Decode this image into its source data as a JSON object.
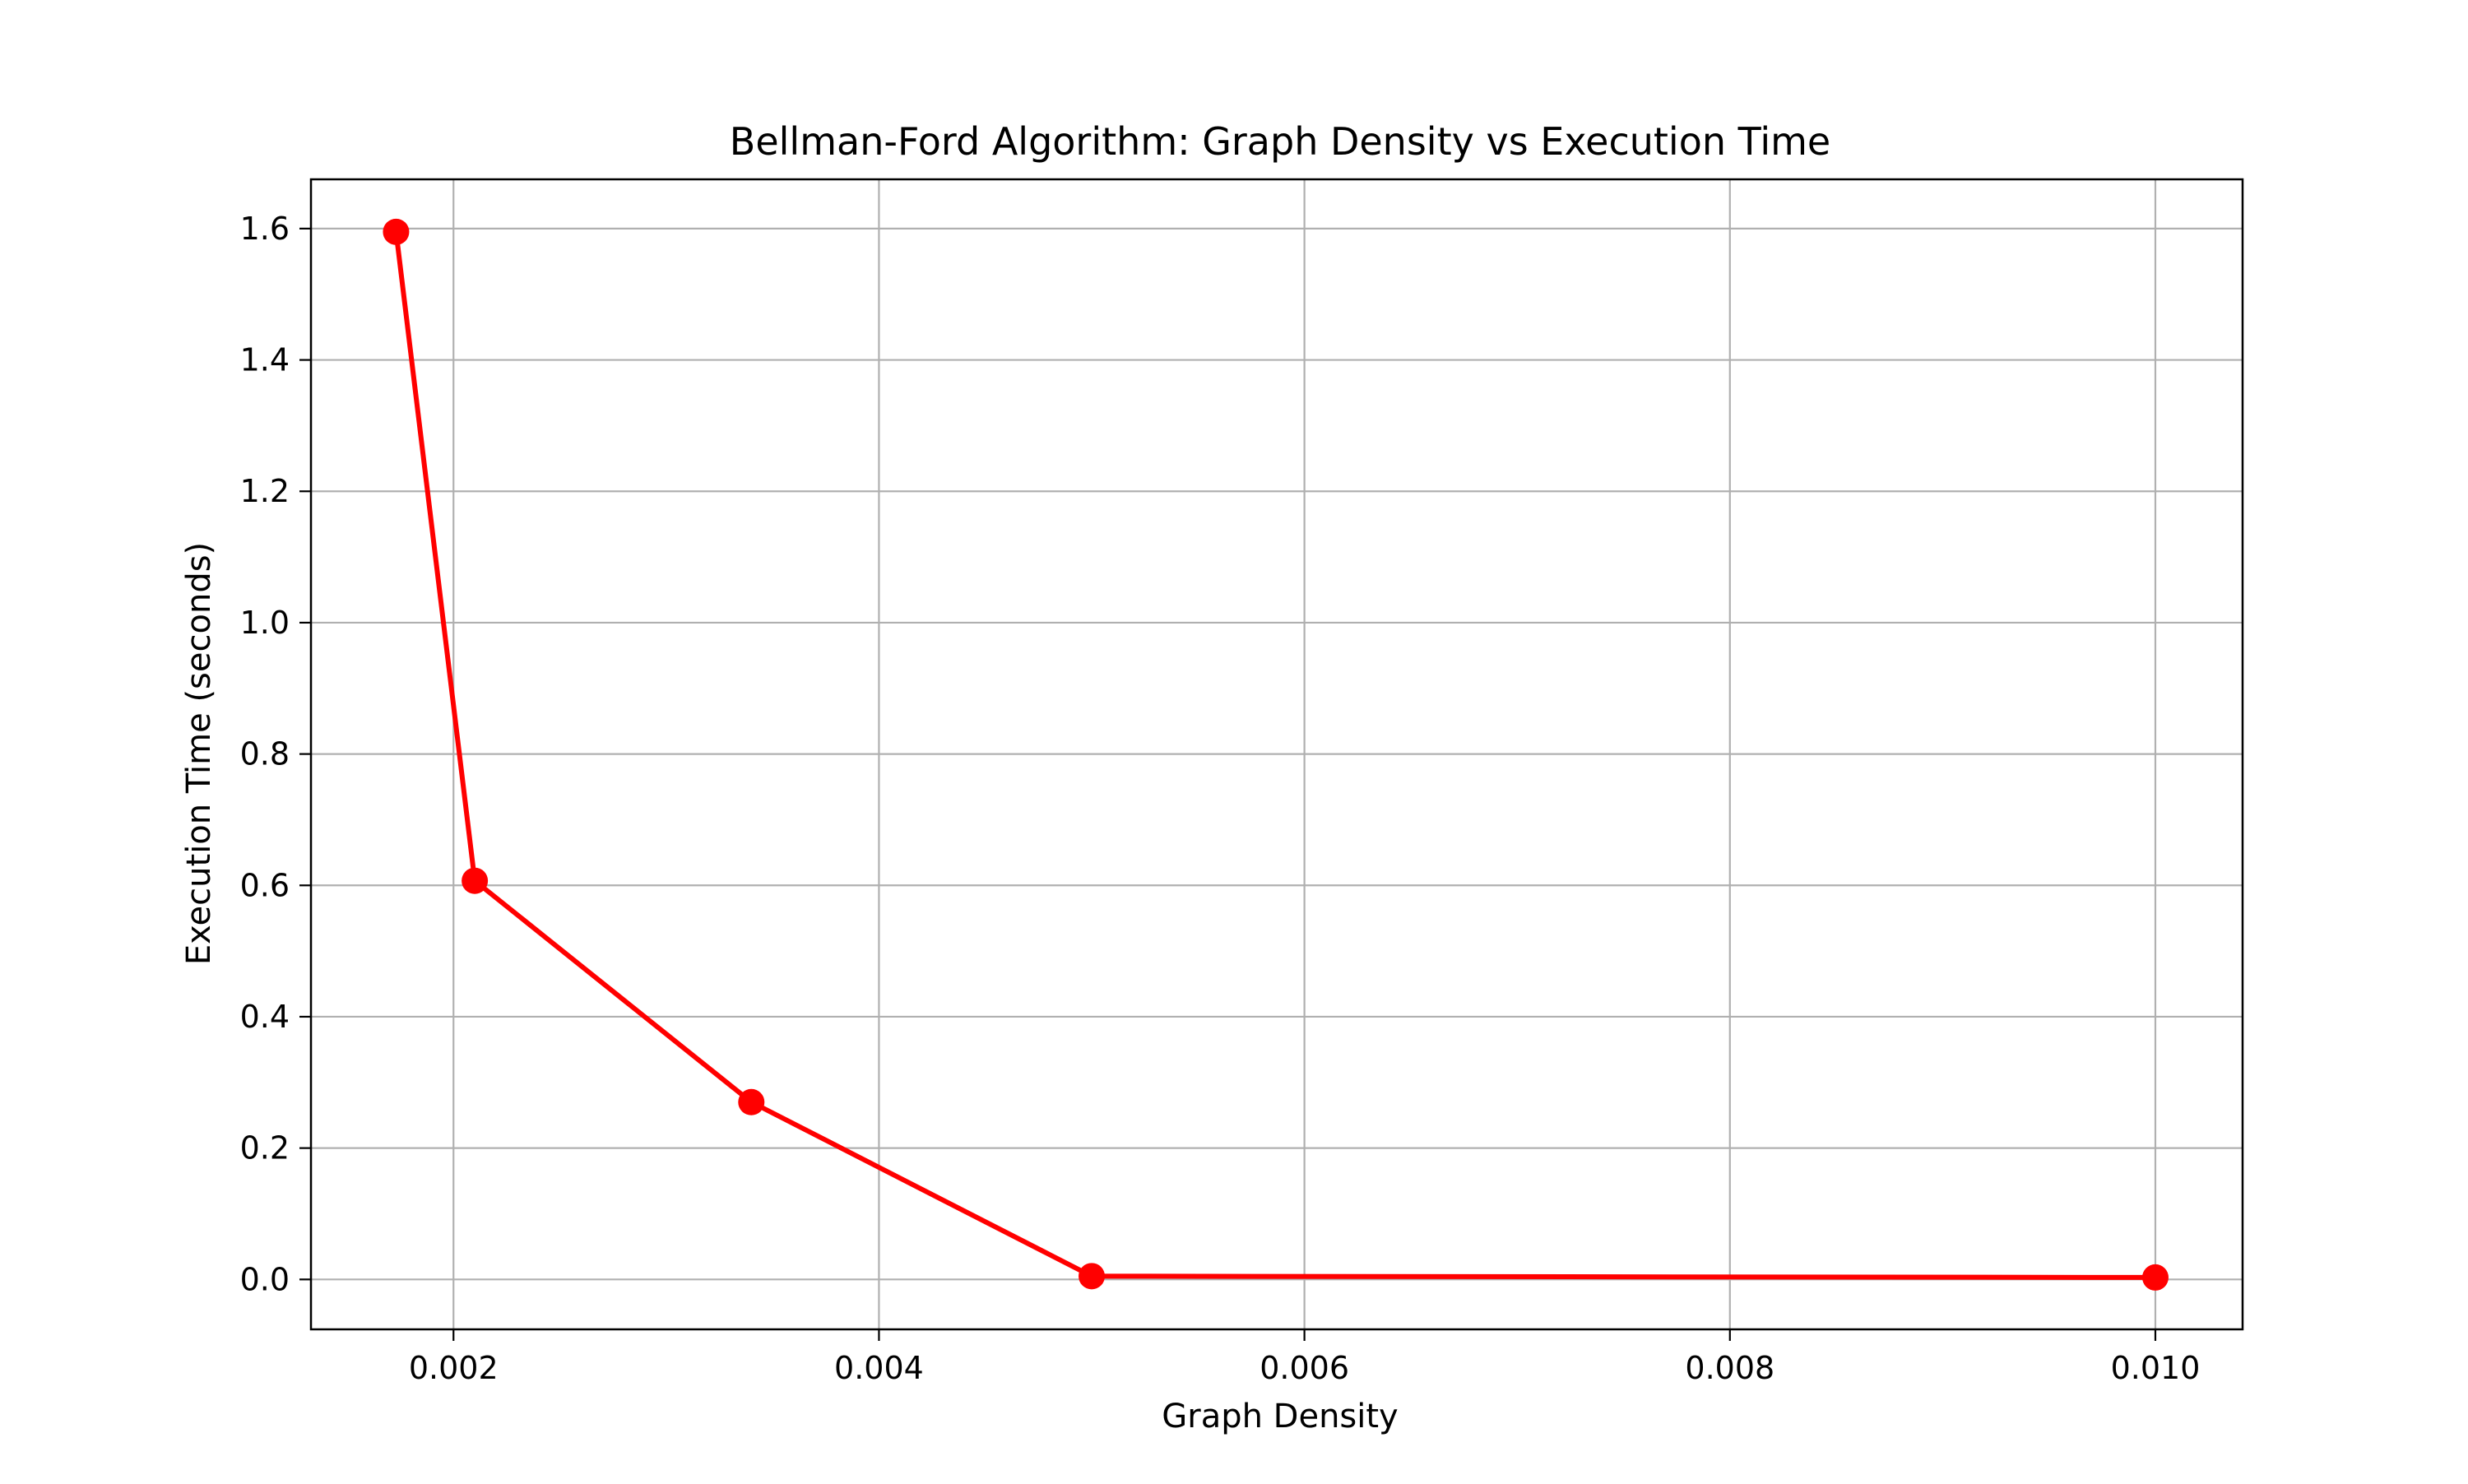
{
  "chart_data": {
    "type": "line",
    "title": "Bellman-Ford Algorithm: Graph Density vs Execution Time",
    "xlabel": "Graph Density",
    "ylabel": "Execution Time (seconds)",
    "xlim": [
      0.00133,
      0.01041
    ],
    "ylim": [
      -0.076,
      1.675
    ],
    "grid": true,
    "legend": "none",
    "x_ticks": [
      0.002,
      0.004,
      0.006,
      0.008,
      0.01
    ],
    "x_tick_labels": [
      "0.002",
      "0.004",
      "0.006",
      "0.008",
      "0.010"
    ],
    "y_ticks": [
      0.0,
      0.2,
      0.4,
      0.6,
      0.8,
      1.0,
      1.2,
      1.4,
      1.6
    ],
    "y_tick_labels": [
      "0.0",
      "0.2",
      "0.4",
      "0.6",
      "0.8",
      "1.0",
      "1.2",
      "1.4",
      "1.6"
    ],
    "series": [
      {
        "color": "#ff0000",
        "marker": "circle",
        "x": [
          0.00173,
          0.0021,
          0.0034,
          0.005,
          0.01
        ],
        "y": [
          1.595,
          0.607,
          0.27,
          0.005,
          0.003
        ]
      }
    ]
  }
}
